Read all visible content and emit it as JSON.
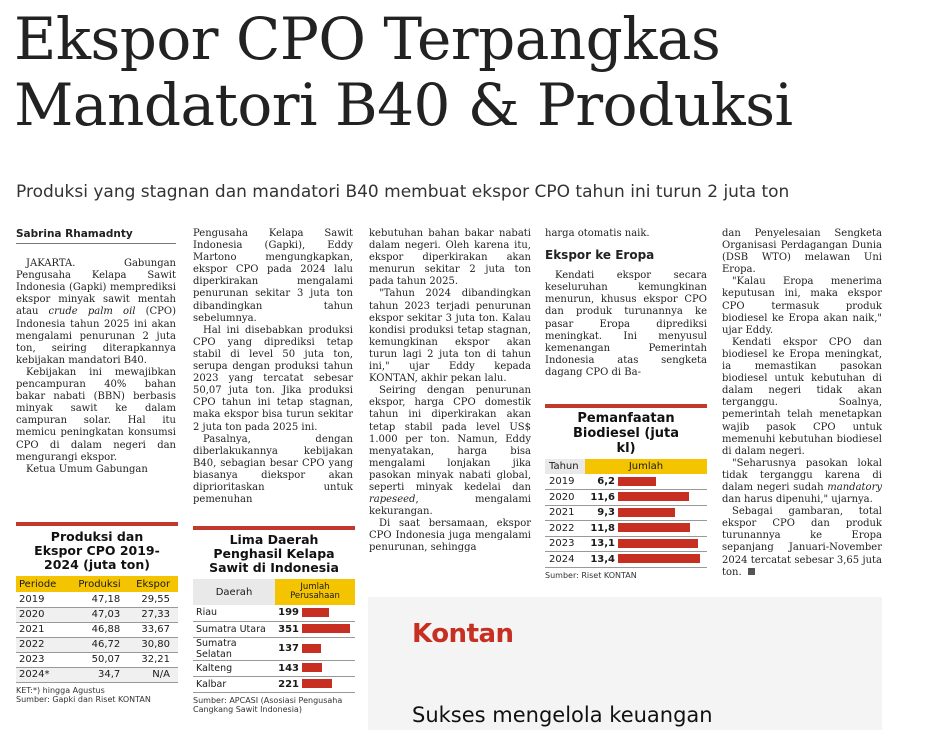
{
  "article": {
    "headline_line1": "Ekspor CPO Terpangkas",
    "headline_line2": "Mandatori B40 & Produksi",
    "subheadline": "Produksi yang stagnan dan mandatori B40 membuat ekspor CPO tahun ini turun 2 juta ton",
    "byline": "Sabrina Rhamadnty",
    "col1": [
      "JAKARTA. Gabungan Pengusaha Kelapa Sawit Indonesia (Gapki) memprediksi ekspor minyak sawit mentah atau crude palm oil (CPO) Indonesia tahun 2025 ini akan mengalami penurunan 2 juta ton, seiring diterapkannya kebijakan mandatori B40.",
      "Kebijakan ini mewajibkan pencampuran 40% bahan bakar nabati (BBN) berbasis minyak sawit ke dalam campuran solar. Hal itu memicu peningkatan konsumsi CPO di dalam negeri dan mengurangi ekspor.",
      "Ketua Umum Gabungan"
    ],
    "col2": [
      "Pengusaha Kelapa Sawit Indonesia (Gapki), Eddy Martono mengungkapkan, ekspor CPO pada 2024 lalu diperkirakan mengalami penurunan sekitar 3 juta ton dibandingkan tahun sebelumnya.",
      "Hal ini disebabkan produksi CPO yang diprediksi tetap stabil di level 50 juta ton, serupa dengan produksi tahun 2023 yang tercatat sebesar 50,07 juta ton. Jika produksi CPO tahun ini tetap stagnan, maka ekspor bisa turun sekitar 2 juta ton pada 2025 ini.",
      "Pasalnya, dengan diberlakukannya kebijakan B40, sebagian besar CPO yang biasanya diekspor akan diprioritaskan untuk pemenuhan"
    ],
    "col3": [
      "kebutuhan bahan bakar nabati dalam negeri. Oleh karena itu, ekspor diperkirakan akan menurun sekitar 2 juta ton pada tahun 2025.",
      "\"Tahun 2024 dibandingkan tahun 2023 terjadi penurunan ekspor sekitar 3 juta ton. Kalau kondisi produksi tetap stagnan, kemungkinan ekspor akan turun lagi 2 juta ton di tahun ini,\" ujar Eddy kepada KONTAN, akhir pekan lalu.",
      "Seiring dengan penurunan ekspor, harga CPO domestik tahun ini diperkirakan akan tetap stabil pada level US$ 1.000 per ton. Namun, Eddy menyatakan, harga bisa mengalami lonjakan jika pasokan minyak nabati global, seperti minyak kedelai dan rapeseed, mengalami kekurangan.",
      "Di saat bersamaan, ekspor CPO Indonesia juga mengalami penurunan, sehingga"
    ],
    "col4_first": "harga otomatis naik.",
    "col4_subhead": "Ekspor ke Eropa",
    "col4": [
      "Kendati ekspor secara keseluruhan kemungkinan menurun, khusus ekspor CPO dan produk turunannya ke pasar Eropa diprediksi meningkat. Ini menyusul kemenangan Pemerintah Indonesia atas sengketa dagang CPO di Ba-"
    ],
    "col5": [
      "dan Penyelesaian Sengketa Organisasi Perdagangan Dunia (DSB WTO) melawan Uni Eropa.",
      "\"Kalau Eropa menerima keputusan ini, maka ekspor CPO termasuk produk biodiesel ke Eropa akan naik,\" ujar Eddy.",
      "Kendati ekspor CPO dan biodiesel ke Eropa meningkat, ia memastikan pasokan biodiesel untuk kebutuhan di dalam negeri tidak akan terganggu. Soalnya, pemerintah telah menetapkan wajib pasok CPO untuk memenuhi kebutuhan biodiesel di dalam negeri.",
      "\"Seharusnya pasokan lokal tidak terganggu karena di dalam negeri sudah mandatory dan harus dipenuhi,\" ujarnya.",
      "Sebagai gambaran, total ekspor CPO dan produk turunannya ke Eropa sepanjang Januari-November 2024 tercatat sebesar 3,65 juta ton."
    ]
  },
  "table1": {
    "title": "Produksi dan Ekspor CPO 2019-2024 (juta ton)",
    "headers": [
      "Periode",
      "Produksi",
      "Ekspor"
    ],
    "rows": [
      [
        "2019",
        "47,18",
        "29,55"
      ],
      [
        "2020",
        "47,03",
        "27,33"
      ],
      [
        "2021",
        "46,88",
        "33,67"
      ],
      [
        "2022",
        "46,72",
        "30,80"
      ],
      [
        "2023",
        "50,07",
        "32,21"
      ],
      [
        "2024*",
        "34,7",
        "N/A"
      ]
    ],
    "note": "KET:*) hingga Agustus",
    "source": "Sumber: Gapki dan Riset KONTAN"
  },
  "table2": {
    "title": "Lima Daerah Penghasil Kelapa Sawit di Indonesia",
    "headers": [
      "Daerah",
      "Jumlah Perusahaan"
    ],
    "rows": [
      {
        "region": "Riau",
        "count": "199",
        "value": 199
      },
      {
        "region": "Sumatra Utara",
        "count": "351",
        "value": 351
      },
      {
        "region": "Sumatra Selatan",
        "count": "137",
        "value": 137
      },
      {
        "region": "Kalteng",
        "count": "143",
        "value": 143
      },
      {
        "region": "Kalbar",
        "count": "221",
        "value": 221
      }
    ],
    "max": 351,
    "source": "Sumber: APCASI (Asosiasi Pengusaha Cangkang Sawit Indonesia)"
  },
  "table3": {
    "title": "Pemanfaatan Biodiesel (juta kl)",
    "headers": [
      "Tahun",
      "Jumlah"
    ],
    "rows": [
      {
        "year": "2019",
        "label": "6,2",
        "value": 6.2
      },
      {
        "year": "2020",
        "label": "11,6",
        "value": 11.6
      },
      {
        "year": "2021",
        "label": "9,3",
        "value": 9.3
      },
      {
        "year": "2022",
        "label": "11,8",
        "value": 11.8
      },
      {
        "year": "2023",
        "label": "13,1",
        "value": 13.1
      },
      {
        "year": "2024",
        "label": "13,4",
        "value": 13.4
      }
    ],
    "max": 13.4,
    "source": "Sumber: Riset KONTAN"
  },
  "ad": {
    "brand": "Kontan",
    "text": "Sukses mengelola keuangan"
  },
  "colors": {
    "accent_red": "#c62f21",
    "header_yellow": "#f5c400",
    "row_shade": "#e9e9e9"
  }
}
